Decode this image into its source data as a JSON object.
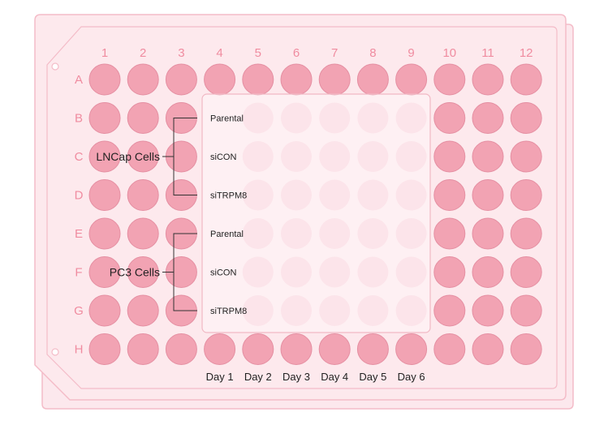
{
  "plate": {
    "columns": [
      "1",
      "2",
      "3",
      "4",
      "5",
      "6",
      "7",
      "8",
      "9",
      "10",
      "11",
      "12"
    ],
    "rows": [
      "A",
      "B",
      "C",
      "D",
      "E",
      "F",
      "G",
      "H"
    ]
  },
  "groups": [
    {
      "label": "LNCap Cells",
      "conditions": [
        "Parental",
        "siCON",
        "siTRPM8"
      ]
    },
    {
      "label": "PC3 Cells",
      "conditions": [
        "Parental",
        "siCON",
        "siTRPM8"
      ]
    }
  ],
  "days": [
    "Day 1",
    "Day 2",
    "Day 3",
    "Day 4",
    "Day 5",
    "Day 6"
  ],
  "colors": {
    "well": "#f2a3b3",
    "well_stroke": "#e58fa2",
    "well_faded": "#fbe2e8",
    "plate_fill": "#fde9ed",
    "plate_border": "#f4bcc8",
    "label_pink": "#f08ca0",
    "text_dark": "#222222"
  }
}
